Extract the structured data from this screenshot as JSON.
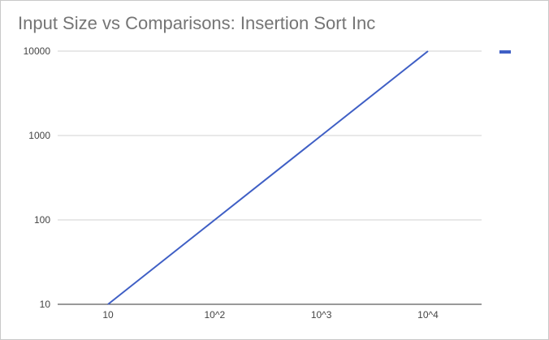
{
  "chart_data": {
    "type": "line",
    "title": "Input Size vs Comparisons: Insertion Sort Inc",
    "xlabel": "",
    "ylabel": "",
    "x_scale": "log",
    "y_scale": "log",
    "x_ticks": [
      {
        "value": 10,
        "label": "10"
      },
      {
        "value": 100,
        "label": "10^2"
      },
      {
        "value": 1000,
        "label": "10^3"
      },
      {
        "value": 10000,
        "label": "10^4"
      }
    ],
    "y_ticks": [
      {
        "value": 10,
        "label": "10"
      },
      {
        "value": 100,
        "label": "100"
      },
      {
        "value": 1000,
        "label": "1000"
      },
      {
        "value": 10000,
        "label": "10000"
      }
    ],
    "xlim": [
      10,
      10000
    ],
    "ylim": [
      10,
      10000
    ],
    "grid": true,
    "legend_position": "right",
    "series": [
      {
        "color": "#3f5fc5",
        "points": [
          {
            "x": 10,
            "y": 10
          },
          {
            "x": 100,
            "y": 100
          },
          {
            "x": 1000,
            "y": 1000
          },
          {
            "x": 10000,
            "y": 10000
          }
        ]
      }
    ]
  }
}
